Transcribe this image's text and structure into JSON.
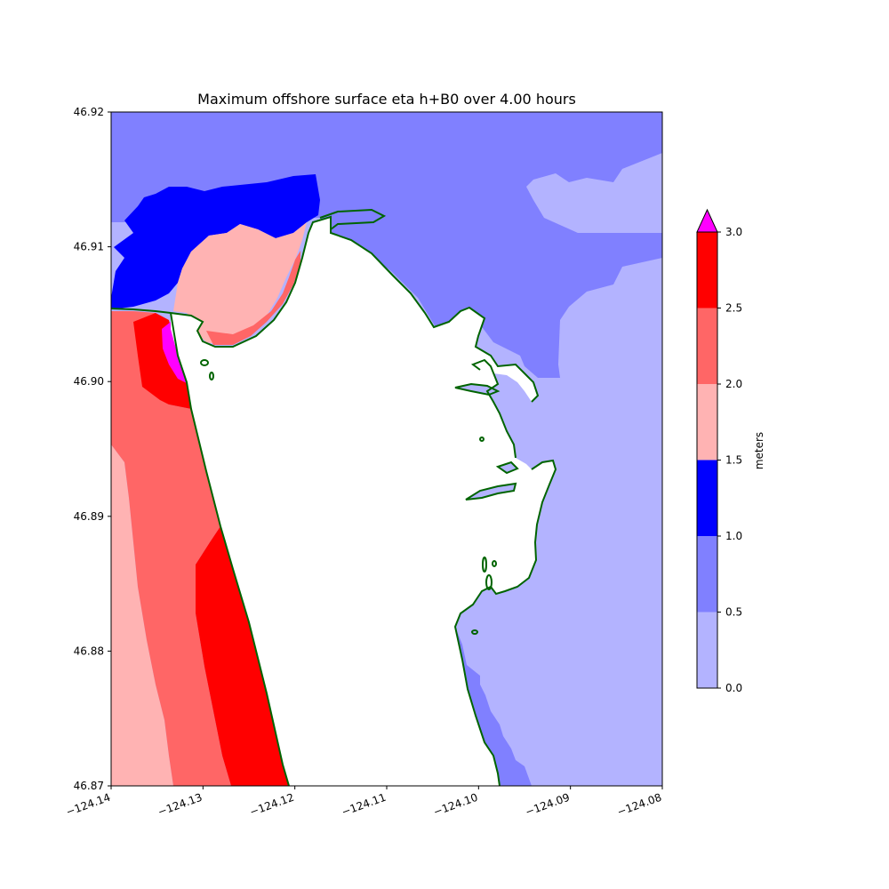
{
  "title": "Maximum offshore surface eta h+B0 over 4.00 hours",
  "axes": {
    "x_ticks": [
      "−124.14",
      "−124.13",
      "−124.12",
      "−124.11",
      "−124.10",
      "−124.09",
      "−124.08"
    ],
    "y_ticks": [
      "46.92",
      "46.91",
      "46.90",
      "46.89",
      "46.88",
      "46.87"
    ],
    "xlim": [
      -124.14,
      -124.08
    ],
    "ylim": [
      46.87,
      46.92
    ]
  },
  "colorbar": {
    "label": "meters",
    "ticks": [
      "0.0",
      "0.5",
      "1.0",
      "1.5",
      "2.0",
      "2.5",
      "3.0"
    ],
    "levels": [
      {
        "from": 0.0,
        "to": 0.5,
        "color": "#b3b3ff"
      },
      {
        "from": 0.5,
        "to": 1.0,
        "color": "#8080ff"
      },
      {
        "from": 1.0,
        "to": 1.5,
        "color": "#0000ff"
      },
      {
        "from": 1.5,
        "to": 2.0,
        "color": "#ffb3b3"
      },
      {
        "from": 2.0,
        "to": 2.5,
        "color": "#ff6666"
      },
      {
        "from": 2.5,
        "to": 3.0,
        "color": "#ff0000"
      }
    ],
    "extend_max_color": "#ff00ff"
  },
  "colors": {
    "coastline": "#006400",
    "land": "#ffffff"
  }
}
